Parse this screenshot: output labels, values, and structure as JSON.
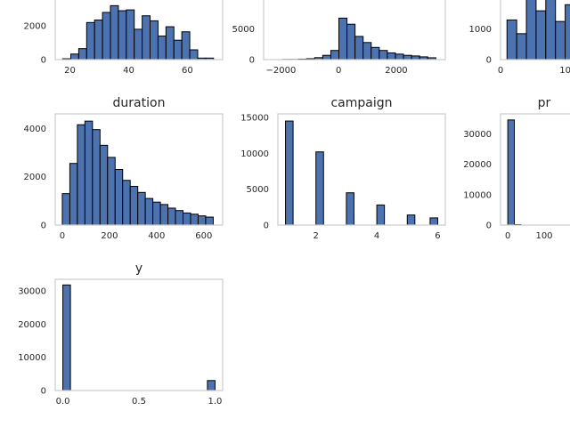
{
  "chart_data": [
    {
      "id": "age",
      "type": "bar",
      "title": "",
      "xlabel": "",
      "ylabel": "",
      "xlim": [
        15,
        72
      ],
      "ylim": [
        0,
        3800
      ],
      "xticks": [
        20,
        40,
        60
      ],
      "yticks": [
        0,
        2000
      ],
      "bin_edges": [
        17.5,
        20.3,
        23.0,
        25.7,
        28.4,
        31.1,
        33.8,
        36.5,
        39.2,
        41.9,
        44.6,
        47.3,
        50.0,
        52.7,
        55.4,
        58.1,
        60.8,
        63.5,
        66.2,
        68.9
      ],
      "counts": [
        50,
        330,
        650,
        2200,
        2350,
        2800,
        3200,
        2900,
        2950,
        1800,
        2600,
        2300,
        1400,
        1950,
        1150,
        1650,
        580,
        90,
        90
      ],
      "grid": false,
      "legend": "none"
    },
    {
      "id": "balance",
      "type": "bar",
      "title": "",
      "xlabel": "",
      "ylabel": "",
      "xlim": [
        -2600,
        3700
      ],
      "ylim": [
        0,
        10500
      ],
      "xticks": [
        -2000,
        0,
        2000
      ],
      "yticks": [
        0,
        5000
      ],
      "bin_edges": [
        -1950,
        -1670,
        -1390,
        -1110,
        -830,
        -550,
        -270,
        10,
        290,
        570,
        850,
        1130,
        1410,
        1690,
        1970,
        2250,
        2530,
        2810,
        3090,
        3370
      ],
      "counts": [
        30,
        30,
        80,
        150,
        320,
        700,
        1500,
        6800,
        5800,
        3800,
        2800,
        2000,
        1500,
        1100,
        900,
        700,
        600,
        450,
        300
      ],
      "grid": false,
      "legend": "none"
    },
    {
      "id": "day",
      "type": "bar",
      "title": "",
      "xlabel": "",
      "ylabel": "",
      "xlim": [
        0,
        13.5
      ],
      "ylim": [
        0,
        2100
      ],
      "xticks": [
        0,
        10
      ],
      "yticks": [
        0,
        1000
      ],
      "bin_edges": [
        1.0,
        2.5,
        4.0,
        5.5,
        7.0,
        8.5,
        10.0,
        11.5,
        13.0
      ],
      "counts": [
        1300,
        850,
        2000,
        1600,
        2000,
        1250,
        1800,
        1300
      ],
      "grid": false,
      "legend": "none"
    },
    {
      "id": "duration",
      "type": "bar",
      "title": "duration",
      "xlabel": "",
      "ylabel": "",
      "xlim": [
        -30,
        680
      ],
      "ylim": [
        0,
        4600
      ],
      "xticks": [
        0,
        200,
        400,
        600
      ],
      "yticks": [
        0,
        2000,
        4000
      ],
      "bin_edges": [
        0,
        32,
        64,
        96,
        128,
        160,
        192,
        224,
        256,
        288,
        320,
        352,
        384,
        416,
        448,
        480,
        512,
        544,
        576,
        608,
        640
      ],
      "counts": [
        1300,
        2550,
        4150,
        4300,
        3950,
        3300,
        2800,
        2300,
        1850,
        1600,
        1350,
        1100,
        950,
        850,
        700,
        600,
        500,
        450,
        380,
        330
      ],
      "grid": false,
      "legend": "none"
    },
    {
      "id": "campaign",
      "type": "bar",
      "title": "campaign",
      "xlabel": "",
      "ylabel": "",
      "xlim": [
        0.75,
        6.25
      ],
      "ylim": [
        0,
        15500
      ],
      "xticks": [
        2,
        4,
        6
      ],
      "yticks": [
        0,
        5000,
        10000,
        15000
      ],
      "bin_edges": [
        1.0,
        1.25,
        2.0,
        2.25,
        3.0,
        3.25,
        4.0,
        4.25,
        5.0,
        5.25,
        5.75,
        6.0
      ],
      "counts": [
        14500,
        0,
        10200,
        0,
        4500,
        0,
        2800,
        0,
        1400,
        0,
        1000
      ],
      "grid": false,
      "legend": "none"
    },
    {
      "id": "pdays",
      "type": "bar",
      "title": "pr",
      "xlabel": "",
      "ylabel": "",
      "xlim": [
        -20,
        220
      ],
      "ylim": [
        0,
        36500
      ],
      "xticks": [
        0,
        100
      ],
      "yticks": [
        0,
        10000,
        20000,
        30000
      ],
      "bin_edges": [
        0,
        18,
        36
      ],
      "counts": [
        34500,
        150
      ],
      "grid": false,
      "legend": "none"
    },
    {
      "id": "y",
      "type": "bar",
      "title": "y",
      "xlabel": "",
      "ylabel": "",
      "xlim": [
        -0.05,
        1.05
      ],
      "ylim": [
        0,
        33500
      ],
      "xticks": [
        0.0,
        0.5,
        1.0
      ],
      "yticks": [
        0,
        10000,
        20000,
        30000
      ],
      "bin_edges": [
        0,
        0.05,
        0.1,
        0.15,
        0.2,
        0.25,
        0.3,
        0.35,
        0.4,
        0.45,
        0.5,
        0.55,
        0.6,
        0.65,
        0.7,
        0.75,
        0.8,
        0.85,
        0.9,
        0.95,
        1.0
      ],
      "counts": [
        31800,
        0,
        0,
        0,
        0,
        0,
        0,
        0,
        0,
        0,
        0,
        0,
        0,
        0,
        0,
        0,
        0,
        0,
        0,
        3000
      ],
      "grid": false,
      "legend": "none"
    }
  ],
  "tick_text": {
    "age_x": [
      "20",
      "40",
      "60"
    ],
    "age_y": [
      "0",
      "2000"
    ],
    "balance_x": [
      "−2000",
      "0",
      "2000"
    ],
    "balance_y": [
      "0",
      "5000"
    ],
    "day_x": [
      "0",
      "10"
    ],
    "day_y": [
      "0",
      "1000"
    ],
    "duration_x": [
      "0",
      "200",
      "400",
      "600"
    ],
    "duration_y": [
      "0",
      "2000",
      "4000"
    ],
    "campaign_x": [
      "2",
      "4",
      "6"
    ],
    "campaign_y": [
      "0",
      "5000",
      "10000",
      "15000"
    ],
    "pdays_x": [
      "0",
      "100"
    ],
    "pdays_y": [
      "0",
      "10000",
      "20000",
      "30000"
    ],
    "y_x": [
      "0.0",
      "0.5",
      "1.0"
    ],
    "y_y": [
      "0",
      "10000",
      "20000",
      "30000"
    ]
  },
  "colors": {
    "bar": "#4c72b0",
    "edge": "#000000",
    "frame": "#cccccc",
    "text": "#262626"
  }
}
